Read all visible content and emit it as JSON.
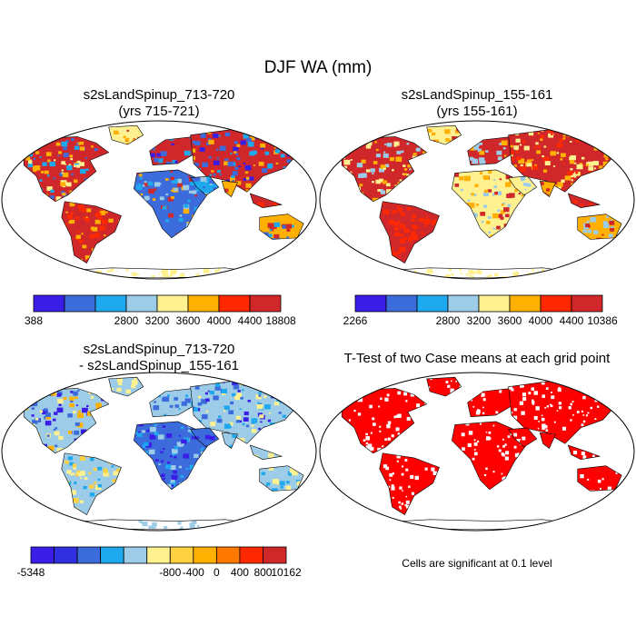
{
  "figure": {
    "title": "DJF WA (mm)"
  },
  "panels": [
    {
      "title_line1": "s2sLandSpinup_713-720",
      "title_line2": "(yrs 715-721)",
      "map": "world-robinson",
      "colorbar": {
        "labels": [
          "388",
          "2800",
          "3200",
          "3600",
          "4000",
          "4400",
          "18808"
        ],
        "colors": [
          "#3a1ee8",
          "#3c6cdc",
          "#1ea8ee",
          "#9ccce8",
          "#fff090",
          "#ffb000",
          "#ff2800",
          "#d0282a"
        ]
      }
    },
    {
      "title_line1": "s2sLandSpinup_155-161",
      "title_line2": "(yrs 155-161)",
      "map": "world-robinson",
      "colorbar": {
        "labels": [
          "2266",
          "2800",
          "3200",
          "3600",
          "4000",
          "4400",
          "10386"
        ],
        "colors": [
          "#3a1ee8",
          "#3c6cdc",
          "#1ea8ee",
          "#9ccce8",
          "#fff090",
          "#ffb000",
          "#ff2800",
          "#d0282a"
        ]
      }
    },
    {
      "title_line1": "s2sLandSpinup_713-720",
      "title_line2": "- s2sLandSpinup_155-161",
      "map": "world-robinson",
      "colorbar": {
        "labels": [
          "-5348",
          "-800",
          "-400",
          "0",
          "400",
          "800",
          "10162"
        ],
        "colors": [
          "#3a1ee8",
          "#3030e0",
          "#3c6cdc",
          "#1ea8ee",
          "#9ccce8",
          "#fff090",
          "#ffd040",
          "#ffb000",
          "#ff7800",
          "#ff2800",
          "#d0282a"
        ]
      }
    },
    {
      "title_line1": "T-Test of two Case means at each grid point",
      "map": "world-robinson",
      "note": "Cells are significant at 0.1 level"
    }
  ],
  "colors": {
    "ocean": "#ffffff",
    "outline": "#000000"
  }
}
